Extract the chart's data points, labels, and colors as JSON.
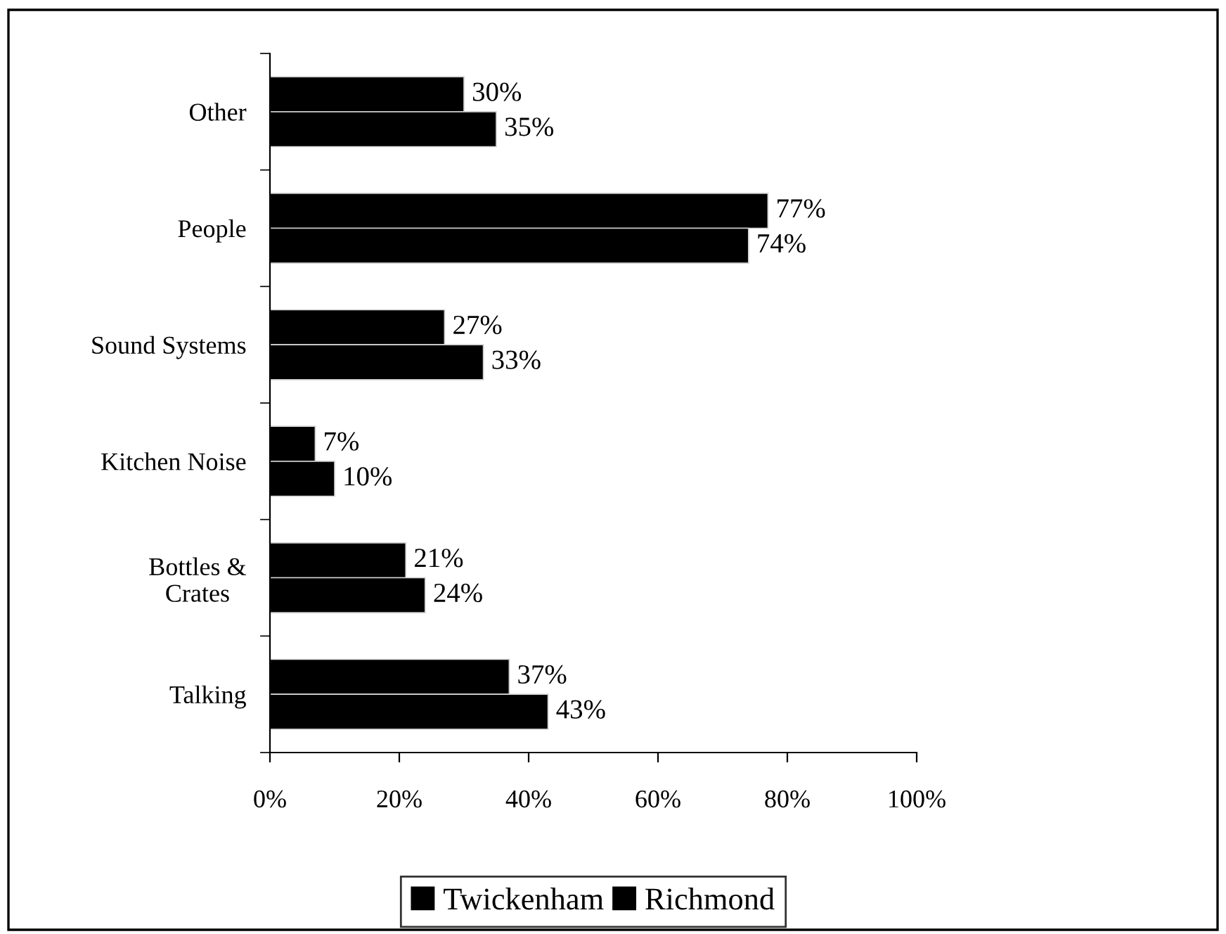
{
  "chart_data": {
    "type": "bar",
    "orientation": "horizontal",
    "categories": [
      "Other",
      "People",
      "Sound Systems",
      "Kitchen Noise",
      "Bottles &\nCrates",
      "Talking"
    ],
    "series": [
      {
        "name": "Twickenham",
        "color": "#000000",
        "values": [
          30,
          77,
          27,
          7,
          21,
          37
        ],
        "value_labels": [
          "30%",
          "77%",
          "27%",
          "7%",
          "21%",
          "37%"
        ]
      },
      {
        "name": "Richmond",
        "color": "#000000",
        "values": [
          35,
          74,
          33,
          10,
          24,
          43
        ],
        "value_labels": [
          "35%",
          "74%",
          "33%",
          "10%",
          "24%",
          "43%"
        ]
      }
    ],
    "xlim": [
      0,
      100
    ],
    "xticks": [
      {
        "value": 0,
        "label": "0%"
      },
      {
        "value": 20,
        "label": "20%"
      },
      {
        "value": 40,
        "label": "40%"
      },
      {
        "value": 60,
        "label": "60%"
      },
      {
        "value": 80,
        "label": "80%"
      },
      {
        "value": 100,
        "label": "100%"
      }
    ],
    "grid": false,
    "legend": "bottom"
  }
}
